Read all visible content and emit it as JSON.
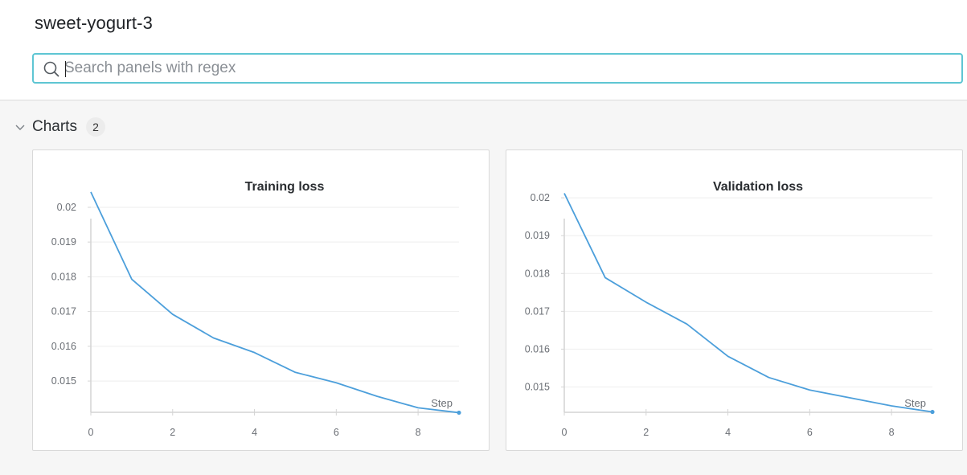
{
  "run": {
    "title": "sweet-yogurt-3"
  },
  "search": {
    "placeholder": "Search panels with regex",
    "value": ""
  },
  "section": {
    "title": "Charts",
    "count": "2"
  },
  "accent": "#5ec6d3",
  "line_color": "#4c9fdb",
  "chart_data": [
    {
      "type": "line",
      "title": "Training loss",
      "xlabel": "Step",
      "ylabel": "",
      "x": [
        0,
        1,
        2,
        3,
        4,
        5,
        6,
        7,
        8,
        9
      ],
      "series": [
        {
          "values": [
            0.02044,
            0.01793,
            0.01692,
            0.01624,
            0.01582,
            0.01525,
            0.01495,
            0.01456,
            0.01423,
            0.01409
          ]
        }
      ],
      "xlim": [
        0,
        9
      ],
      "ylim": [
        0.0141,
        0.0206
      ],
      "xticks": [
        "0",
        "2",
        "4",
        "6",
        "8"
      ],
      "yticks": [
        "0.015",
        "0.016",
        "0.017",
        "0.018",
        "0.019",
        "0.02"
      ],
      "grid": true
    },
    {
      "type": "line",
      "title": "Validation loss",
      "xlabel": "Step",
      "ylabel": "",
      "x": [
        0,
        1,
        2,
        3,
        4,
        5,
        6,
        7,
        8,
        9
      ],
      "series": [
        {
          "values": [
            0.02012,
            0.01789,
            0.01724,
            0.01666,
            0.01581,
            0.01525,
            0.01492,
            0.01471,
            0.0145,
            0.01434
          ]
        }
      ],
      "xlim": [
        0,
        9
      ],
      "ylim": [
        0.01433,
        0.0203
      ],
      "xticks": [
        "0",
        "2",
        "4",
        "6",
        "8"
      ],
      "yticks": [
        "0.015",
        "0.016",
        "0.017",
        "0.018",
        "0.019",
        "0.02"
      ],
      "grid": true
    }
  ]
}
